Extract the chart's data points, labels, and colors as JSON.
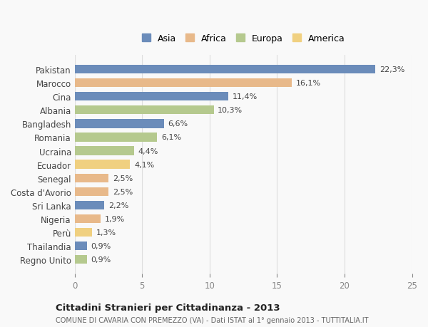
{
  "countries": [
    "Pakistan",
    "Marocco",
    "Cina",
    "Albania",
    "Bangladesh",
    "Romania",
    "Ucraina",
    "Ecuador",
    "Senegal",
    "Costa d'Avorio",
    "Sri Lanka",
    "Nigeria",
    "Perù",
    "Thailandia",
    "Regno Unito"
  ],
  "values": [
    22.3,
    16.1,
    11.4,
    10.3,
    6.6,
    6.1,
    4.4,
    4.1,
    2.5,
    2.5,
    2.2,
    1.9,
    1.3,
    0.9,
    0.9
  ],
  "labels": [
    "22,3%",
    "16,1%",
    "11,4%",
    "10,3%",
    "6,6%",
    "6,1%",
    "4,4%",
    "4,1%",
    "2,5%",
    "2,5%",
    "2,2%",
    "1,9%",
    "1,3%",
    "0,9%",
    "0,9%"
  ],
  "categories": [
    "Asia",
    "Africa",
    "Asia",
    "Europa",
    "Asia",
    "Europa",
    "Europa",
    "America",
    "Africa",
    "Africa",
    "Asia",
    "Africa",
    "America",
    "Asia",
    "Europa"
  ],
  "colors": {
    "Asia": "#6b8cba",
    "Africa": "#e8b98a",
    "Europa": "#b5c98e",
    "America": "#f0d080"
  },
  "legend_order": [
    "Asia",
    "Africa",
    "Europa",
    "America"
  ],
  "title1": "Cittadini Stranieri per Cittadinanza - 2013",
  "title2": "COMUNE DI CAVARIA CON PREMEZZO (VA) - Dati ISTAT al 1° gennaio 2013 - TUTTITALIA.IT",
  "xlim": [
    0,
    25
  ],
  "xticks": [
    0,
    5,
    10,
    15,
    20,
    25
  ],
  "background_color": "#f9f9f9",
  "bar_height": 0.65
}
